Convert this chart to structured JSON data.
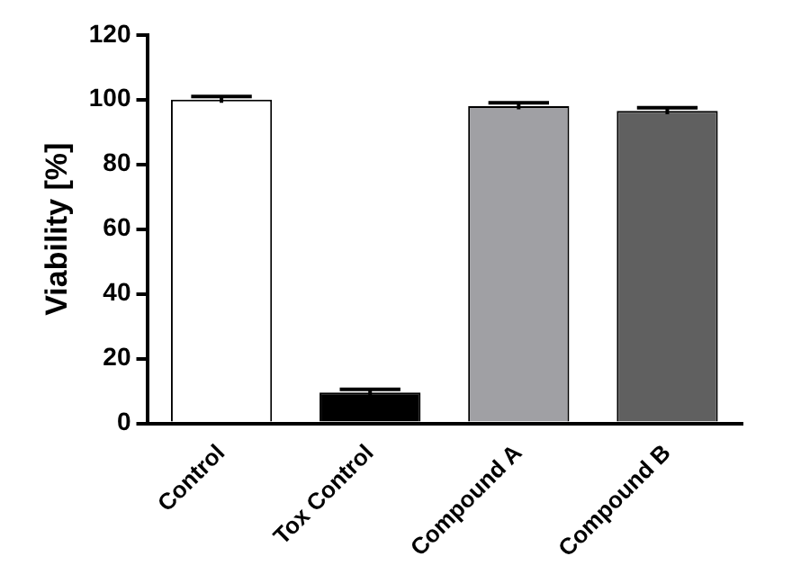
{
  "chart_data": {
    "type": "bar",
    "ylabel": "Viability [%]",
    "categories": [
      "Control",
      "Tox Control",
      "Compound A",
      "Compound B"
    ],
    "values": [
      100,
      9.5,
      98,
      96.5
    ],
    "errors": [
      1,
      1,
      1,
      1
    ],
    "colors": [
      "#ffffff",
      "#000000",
      "#a0a0a4",
      "#606060"
    ],
    "ylim": [
      0,
      120
    ],
    "yticks": [
      0,
      20,
      40,
      60,
      80,
      100,
      120
    ],
    "grid": false,
    "legend": false
  }
}
